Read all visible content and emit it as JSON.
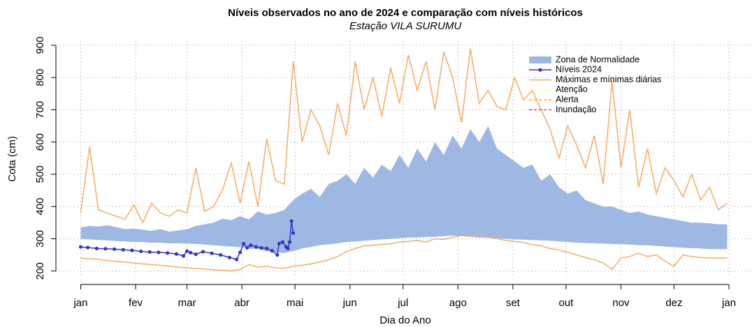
{
  "chart_data": {
    "type": "line",
    "title": "Níveis observados no ano de 2024 e comparação com níveis históricos",
    "subtitle": "Estação VILA SURUMU",
    "xlabel": "Dia do Ano",
    "ylabel": "Cota (cm)",
    "x": [
      1,
      6,
      11,
      16,
      21,
      26,
      31,
      36,
      41,
      46,
      51,
      56,
      61,
      66,
      71,
      76,
      81,
      86,
      91,
      96,
      101,
      106,
      111,
      116,
      121,
      126,
      131,
      136,
      141,
      146,
      151,
      156,
      161,
      166,
      171,
      176,
      181,
      186,
      191,
      196,
      201,
      206,
      211,
      216,
      221,
      226,
      231,
      236,
      241,
      246,
      251,
      256,
      261,
      266,
      271,
      276,
      281,
      286,
      291,
      296,
      301,
      306,
      311,
      316,
      321,
      326,
      331,
      336,
      341,
      346,
      351,
      356,
      361,
      366
    ],
    "xlim": [
      -13,
      380
    ],
    "xticks": [
      {
        "value": 1,
        "label": "jan"
      },
      {
        "value": 32,
        "label": "fev"
      },
      {
        "value": 61,
        "label": "mar"
      },
      {
        "value": 92,
        "label": "abr"
      },
      {
        "value": 122,
        "label": "mai"
      },
      {
        "value": 153,
        "label": "jun"
      },
      {
        "value": 183,
        "label": "jul"
      },
      {
        "value": 214,
        "label": "ago"
      },
      {
        "value": 245,
        "label": "set"
      },
      {
        "value": 275,
        "label": "out"
      },
      {
        "value": 306,
        "label": "nov"
      },
      {
        "value": 336,
        "label": "dez"
      },
      {
        "value": 367,
        "label": "jan"
      }
    ],
    "ylim": [
      180,
      915
    ],
    "yticks": [
      200,
      300,
      400,
      500,
      600,
      700,
      800,
      900
    ],
    "grid": true,
    "legend": "top-right",
    "series": [
      {
        "name": "Zona de Normalidade",
        "color": "#9db8e3",
        "kind": "band",
        "upper": [
          335,
          340,
          338,
          342,
          336,
          330,
          332,
          328,
          325,
          330,
          322,
          326,
          330,
          340,
          345,
          350,
          362,
          358,
          370,
          360,
          385,
          375,
          380,
          390,
          420,
          440,
          455,
          430,
          470,
          480,
          500,
          470,
          520,
          490,
          530,
          510,
          560,
          520,
          580,
          540,
          600,
          560,
          620,
          580,
          640,
          600,
          650,
          580,
          560,
          540,
          520,
          530,
          480,
          500,
          460,
          440,
          450,
          420,
          410,
          400,
          400,
          390,
          380,
          385,
          375,
          370,
          365,
          360,
          355,
          350,
          350,
          348,
          345,
          345
        ],
        "lower": [
          300,
          298,
          296,
          295,
          293,
          292,
          290,
          290,
          288,
          288,
          286,
          286,
          285,
          284,
          282,
          280,
          278,
          276,
          274,
          270,
          268,
          262,
          258,
          256,
          262,
          270,
          275,
          280,
          283,
          286,
          290,
          292,
          294,
          296,
          298,
          300,
          302,
          304,
          304,
          306,
          306,
          308,
          310,
          308,
          306,
          304,
          303,
          302,
          300,
          298,
          297,
          296,
          295,
          294,
          292,
          290,
          288,
          287,
          286,
          285,
          284,
          283,
          282,
          280,
          280,
          278,
          276,
          274,
          272,
          271,
          270,
          268,
          268,
          268
        ]
      },
      {
        "name": "Níveis 2024",
        "color": "#3434c8",
        "kind": "points",
        "x": [
          1,
          5,
          10,
          15,
          20,
          25,
          30,
          35,
          40,
          45,
          50,
          55,
          59,
          61,
          63,
          66,
          70,
          75,
          80,
          85,
          89,
          91,
          93,
          95,
          97,
          100,
          103,
          106,
          109,
          112,
          113,
          115,
          117,
          118,
          119,
          120,
          121
        ],
        "values": [
          275,
          273,
          270,
          269,
          268,
          266,
          264,
          261,
          259,
          258,
          256,
          253,
          247,
          262,
          257,
          252,
          260,
          255,
          250,
          242,
          236,
          258,
          285,
          272,
          280,
          275,
          272,
          270,
          263,
          250,
          285,
          290,
          275,
          270,
          290,
          355,
          318
        ]
      },
      {
        "name": "Máximas e mínimas diárias",
        "color": "#f5b06a",
        "kind": "envelope",
        "max": [
          380,
          585,
          390,
          380,
          370,
          360,
          405,
          350,
          410,
          380,
          370,
          390,
          380,
          520,
          385,
          400,
          450,
          535,
          410,
          540,
          400,
          610,
          480,
          470,
          850,
          600,
          700,
          650,
          560,
          720,
          620,
          850,
          700,
          800,
          680,
          830,
          720,
          870,
          760,
          850,
          700,
          880,
          800,
          660,
          890,
          720,
          760,
          710,
          700,
          800,
          730,
          760,
          700,
          640,
          550,
          650,
          590,
          520,
          620,
          470,
          790,
          520,
          700,
          460,
          580,
          440,
          520,
          480,
          430,
          500,
          420,
          460,
          390,
          410
        ],
        "min": [
          240,
          238,
          236,
          233,
          230,
          228,
          225,
          222,
          220,
          218,
          215,
          212,
          210,
          208,
          206,
          204,
          202,
          200,
          205,
          220,
          212,
          215,
          210,
          208,
          215,
          218,
          222,
          228,
          235,
          245,
          260,
          270,
          278,
          280,
          282,
          285,
          290,
          292,
          295,
          290,
          300,
          298,
          305,
          310,
          308,
          312,
          305,
          300,
          295,
          292,
          288,
          282,
          278,
          270,
          265,
          258,
          250,
          242,
          235,
          225,
          205,
          240,
          245,
          255,
          245,
          250,
          230,
          215,
          250,
          245,
          242,
          240,
          240,
          240
        ]
      },
      {
        "name": "Atenção",
        "color": "#ffff80",
        "kind": "threshold"
      },
      {
        "name": "Alerta",
        "color": "#ffa500",
        "kind": "threshold"
      },
      {
        "name": "Inundação",
        "color": "#e8475f",
        "kind": "threshold"
      }
    ]
  }
}
